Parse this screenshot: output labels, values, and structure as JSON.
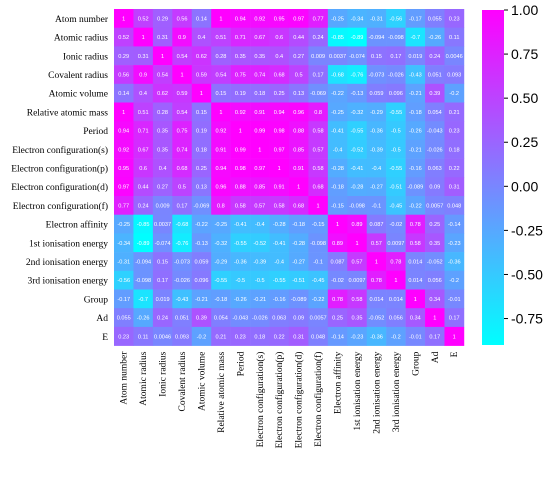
{
  "chart_data": {
    "type": "heatmap",
    "title": "",
    "variables": [
      "Atom number",
      "Atomic radius",
      "Ionic radius",
      "Covalent radius",
      "Atomic volume",
      "Relative atomic mass",
      "Period",
      "Electron configuration(s)",
      "Electron configuration(p)",
      "Electron configuration(d)",
      "Electron configuration(f)",
      "Electron affinity",
      "1st ionisation energy",
      "2nd ionisation energy",
      "3rd ionisation energy",
      "Group",
      "Ad",
      "E"
    ],
    "values": [
      [
        1,
        0.52,
        0.29,
        0.56,
        0.14,
        1,
        0.94,
        0.92,
        0.95,
        0.97,
        0.77,
        -0.25,
        -0.34,
        -0.31,
        -0.56,
        -0.17,
        0.055,
        0.23
      ],
      [
        0.52,
        1,
        0.31,
        0.9,
        0.4,
        0.51,
        0.71,
        0.67,
        0.6,
        0.44,
        0.24,
        -0.85,
        -0.89,
        -0.094,
        -0.098,
        -0.7,
        -0.26,
        0.11
      ],
      [
        0.29,
        0.31,
        1,
        0.54,
        0.62,
        0.28,
        0.35,
        0.35,
        0.4,
        0.27,
        0.009,
        0.0037,
        -0.074,
        0.15,
        0.17,
        0.019,
        0.24,
        0.0046
      ],
      [
        0.56,
        0.9,
        0.54,
        1,
        0.59,
        0.54,
        0.75,
        0.74,
        0.68,
        0.5,
        0.17,
        -0.68,
        -0.76,
        -0.073,
        -0.026,
        -0.43,
        0.051,
        0.093
      ],
      [
        0.14,
        0.4,
        0.62,
        0.59,
        1,
        0.15,
        0.19,
        0.18,
        0.25,
        0.13,
        -0.069,
        -0.22,
        -0.13,
        0.059,
        0.096,
        -0.21,
        0.39,
        -0.2
      ],
      [
        1,
        0.51,
        0.28,
        0.54,
        0.15,
        1,
        0.92,
        0.91,
        0.94,
        0.96,
        0.8,
        -0.25,
        -0.32,
        -0.29,
        -0.55,
        -0.18,
        0.054,
        0.21
      ],
      [
        0.94,
        0.71,
        0.35,
        0.75,
        0.19,
        0.92,
        1,
        0.99,
        0.98,
        0.88,
        0.58,
        -0.41,
        -0.55,
        -0.36,
        -0.5,
        -0.26,
        -0.043,
        0.23
      ],
      [
        0.92,
        0.67,
        0.35,
        0.74,
        0.18,
        0.91,
        0.99,
        1,
        0.97,
        0.85,
        0.57,
        -0.4,
        -0.52,
        -0.39,
        -0.5,
        -0.21,
        -0.026,
        0.18
      ],
      [
        0.95,
        0.6,
        0.4,
        0.68,
        0.25,
        0.94,
        0.98,
        0.97,
        1,
        0.91,
        0.58,
        -0.28,
        -0.41,
        -0.4,
        -0.55,
        -0.16,
        0.063,
        0.22
      ],
      [
        0.97,
        0.44,
        0.27,
        0.5,
        0.13,
        0.96,
        0.88,
        0.85,
        0.91,
        1,
        0.68,
        -0.18,
        -0.28,
        -0.27,
        -0.51,
        -0.089,
        0.09,
        0.31
      ],
      [
        0.77,
        0.24,
        0.009,
        0.17,
        -0.069,
        0.8,
        0.58,
        0.57,
        0.58,
        0.68,
        1,
        -0.15,
        -0.098,
        -0.1,
        -0.45,
        -0.22,
        0.0057,
        0.048
      ],
      [
        -0.25,
        -0.85,
        0.0037,
        -0.68,
        -0.22,
        -0.25,
        -0.41,
        -0.4,
        -0.28,
        -0.18,
        -0.15,
        1,
        0.89,
        0.087,
        -0.02,
        0.78,
        0.25,
        -0.14
      ],
      [
        -0.34,
        -0.89,
        -0.074,
        -0.76,
        -0.13,
        -0.32,
        -0.55,
        -0.52,
        -0.41,
        -0.28,
        -0.098,
        0.89,
        1,
        0.57,
        0.0097,
        0.58,
        0.35,
        -0.23
      ],
      [
        -0.31,
        -0.094,
        0.15,
        -0.073,
        0.059,
        -0.29,
        -0.36,
        -0.39,
        -0.4,
        -0.27,
        -0.1,
        0.087,
        0.57,
        1,
        0.78,
        0.014,
        -0.052,
        -0.36
      ],
      [
        -0.56,
        -0.098,
        0.17,
        -0.026,
        0.096,
        -0.55,
        -0.5,
        -0.5,
        -0.55,
        -0.51,
        -0.45,
        -0.02,
        0.0097,
        0.78,
        1,
        0.014,
        0.056,
        -0.2
      ],
      [
        -0.17,
        -0.7,
        0.019,
        -0.43,
        -0.21,
        -0.18,
        -0.26,
        -0.21,
        -0.16,
        -0.089,
        -0.22,
        0.78,
        0.58,
        0.014,
        0.014,
        1,
        0.34,
        -0.01
      ],
      [
        0.055,
        -0.26,
        0.24,
        0.051,
        0.39,
        0.054,
        -0.043,
        -0.026,
        0.063,
        0.09,
        0.0057,
        0.25,
        0.35,
        -0.052,
        0.056,
        0.34,
        1,
        0.17
      ],
      [
        0.23,
        0.11,
        0.0046,
        0.093,
        -0.2,
        0.21,
        0.23,
        0.18,
        0.22,
        0.31,
        0.048,
        -0.14,
        -0.23,
        -0.36,
        -0.2,
        -0.01,
        0.17,
        1
      ]
    ],
    "value_labels": [
      [
        "1",
        "0.52",
        "0.29",
        "0.56",
        "0.14",
        "1",
        "0.94",
        "0.92",
        "0.95",
        "0.97",
        "0.77",
        "-0.25",
        "-0.34",
        "-0.31",
        "-0.56",
        "-0.17",
        "0.055",
        "0.23"
      ],
      [
        "0.52",
        "1",
        "0.31",
        "0.9",
        "0.4",
        "0.51",
        "0.71",
        "0.67",
        "0.6",
        "0.44",
        "0.24",
        "-0.85",
        "-0.89",
        "-0.094",
        "-0.098",
        "-0.7",
        "-0.26",
        "0.11"
      ],
      [
        "0.29",
        "0.31",
        "1",
        "0.54",
        "0.62",
        "0.28",
        "0.35",
        "0.35",
        "0.4",
        "0.27",
        "0.009",
        "0.0037",
        "-0.074",
        "0.15",
        "0.17",
        "0.019",
        "0.24",
        "0.0046"
      ],
      [
        "0.56",
        "0.9",
        "0.54",
        "1",
        "0.59",
        "0.54",
        "0.75",
        "0.74",
        "0.68",
        "0.5",
        "0.17",
        "-0.68",
        "-0.76",
        "-0.073",
        "-0.026",
        "-0.43",
        "0.051",
        "0.093"
      ],
      [
        "0.14",
        "0.4",
        "0.62",
        "0.59",
        "1",
        "0.15",
        "0.19",
        "0.18",
        "0.25",
        "0.13",
        "-0.069",
        "-0.22",
        "-0.13",
        "0.059",
        "0.096",
        "-0.21",
        "0.39",
        "-0.2"
      ],
      [
        "1",
        "0.51",
        "0.28",
        "0.54",
        "0.15",
        "1",
        "0.92",
        "0.91",
        "0.94",
        "0.96",
        "0.8",
        "-0.25",
        "-0.32",
        "-0.29",
        "-0.55",
        "-0.18",
        "0.054",
        "0.21"
      ],
      [
        "0.94",
        "0.71",
        "0.35",
        "0.75",
        "0.19",
        "0.92",
        "1",
        "0.99",
        "0.98",
        "0.88",
        "0.58",
        "-0.41",
        "-0.55",
        "-0.36",
        "-0.5",
        "-0.26",
        "-0.043",
        "0.23"
      ],
      [
        "0.92",
        "0.67",
        "0.35",
        "0.74",
        "0.18",
        "0.91",
        "0.99",
        "1",
        "0.97",
        "0.85",
        "0.57",
        "-0.4",
        "-0.52",
        "-0.39",
        "-0.5",
        "-0.21",
        "-0.026",
        "0.18"
      ],
      [
        "0.95",
        "0.6",
        "0.4",
        "0.68",
        "0.25",
        "0.94",
        "0.98",
        "0.97",
        "1",
        "0.91",
        "0.58",
        "-0.28",
        "-0.41",
        "-0.4",
        "-0.55",
        "-0.16",
        "0.063",
        "0.22"
      ],
      [
        "0.97",
        "0.44",
        "0.27",
        "0.5",
        "0.13",
        "0.96",
        "0.88",
        "0.85",
        "0.91",
        "1",
        "0.68",
        "-0.18",
        "-0.28",
        "-0.27",
        "-0.51",
        "-0.089",
        "0.09",
        "0.31"
      ],
      [
        "0.77",
        "0.24",
        "0.009",
        "0.17",
        "-0.069",
        "0.8",
        "0.58",
        "0.57",
        "0.58",
        "0.68",
        "1",
        "-0.15",
        "-0.098",
        "-0.1",
        "-0.45",
        "-0.22",
        "0.0057",
        "0.048"
      ],
      [
        "-0.25",
        "-0.85",
        "0.0037",
        "-0.68",
        "-0.22",
        "-0.25",
        "-0.41",
        "-0.4",
        "-0.28",
        "-0.18",
        "-0.15",
        "1",
        "0.89",
        "0.087",
        "-0.02",
        "0.78",
        "0.25",
        "-0.14"
      ],
      [
        "-0.34",
        "-0.89",
        "-0.074",
        "-0.76",
        "-0.13",
        "-0.32",
        "-0.55",
        "-0.52",
        "-0.41",
        "-0.28",
        "-0.098",
        "0.89",
        "1",
        "0.57",
        "0.0097",
        "0.58",
        "0.35",
        "-0.23"
      ],
      [
        "-0.31",
        "-0.094",
        "0.15",
        "-0.073",
        "0.059",
        "-0.29",
        "-0.36",
        "-0.39",
        "-0.4",
        "-0.27",
        "-0.1",
        "0.087",
        "0.57",
        "1",
        "0.78",
        "0.014",
        "-0.052",
        "-0.36"
      ],
      [
        "-0.56",
        "-0.098",
        "0.17",
        "-0.026",
        "0.096",
        "-0.55",
        "-0.5",
        "-0.5",
        "-0.55",
        "-0.51",
        "-0.45",
        "-0.02",
        "0.0097",
        "0.78",
        "1",
        "0.014",
        "0.056",
        "-0.2"
      ],
      [
        "-0.17",
        "-0.7",
        "0.019",
        "-0.43",
        "-0.21",
        "-0.18",
        "-0.26",
        "-0.21",
        "-0.16",
        "-0.089",
        "-0.22",
        "0.78",
        "0.58",
        "0.014",
        "0.014",
        "1",
        "0.34",
        "-0.01"
      ],
      [
        "0.055",
        "-0.26",
        "0.24",
        "0.051",
        "0.39",
        "0.054",
        "-0.043",
        "-0.026",
        "0.063",
        "0.09",
        "0.0057",
        "0.25",
        "0.35",
        "-0.052",
        "0.056",
        "0.34",
        "1",
        "0.17"
      ],
      [
        "0.23",
        "0.11",
        "0.0046",
        "0.093",
        "-0.2",
        "0.21",
        "0.23",
        "0.18",
        "0.22",
        "0.31",
        "0.048",
        "-0.14",
        "-0.23",
        "-0.36",
        "-0.2",
        "-0.01",
        "0.17",
        "1"
      ]
    ],
    "colorbar": {
      "range": [
        -0.9,
        1.0
      ],
      "ticks": [
        "1.00",
        "0.75",
        "0.50",
        "0.25",
        "0.00",
        "-0.25",
        "-0.50",
        "-0.75"
      ],
      "tick_values": [
        1.0,
        0.75,
        0.5,
        0.25,
        0.0,
        -0.25,
        -0.5,
        -0.75
      ],
      "colormap": "cool (cyan to magenta)",
      "low_color": "#00ffff",
      "high_color": "#ff00ff"
    },
    "grid": false,
    "legend": "right"
  }
}
